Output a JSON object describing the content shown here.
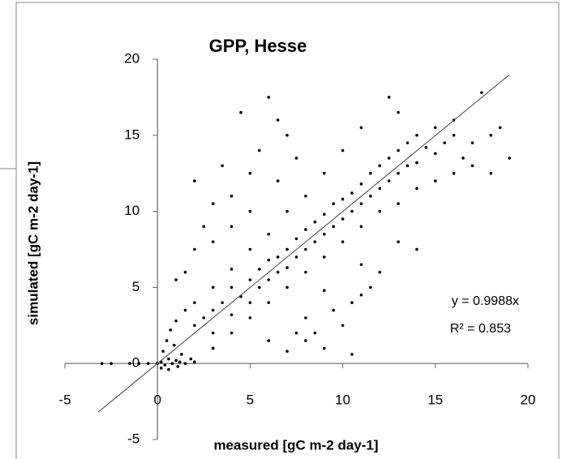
{
  "chart_data": {
    "type": "scatter",
    "title": "GPP, Hesse",
    "x_label": "measured [gC m-2 day-1]",
    "y_label": "simulated [gC m-2 day-1]",
    "xlim": [
      -5,
      20
    ],
    "ylim": [
      -5,
      20
    ],
    "xticks": [
      -5,
      0,
      5,
      10,
      15,
      20
    ],
    "yticks": [
      -5,
      0,
      5,
      10,
      15,
      20
    ],
    "color": "#000000",
    "annotations": [
      "y = 0.9988x",
      "R² = 0.853"
    ],
    "fit": {
      "slope": 0.9988,
      "x_range": [
        -3.2,
        19
      ]
    },
    "x": [
      -3,
      -2.5,
      -1.5,
      -1,
      -0.5,
      0,
      0.2,
      0.4,
      0.6,
      0.8,
      1,
      1.2,
      1.5,
      0.3,
      0.5,
      0.7,
      1,
      0.9,
      1.3,
      1.8,
      2,
      0.2,
      0.6,
      1.1,
      2,
      2.5,
      3,
      3,
      3.5,
      4,
      4,
      4.5,
      5,
      5,
      5.5,
      5.5,
      6,
      6,
      6.5,
      6.5,
      7,
      7,
      7.5,
      7.5,
      8,
      8,
      8.5,
      8.5,
      9,
      9,
      9.5,
      9.5,
      10,
      10,
      10.5,
      10.5,
      11,
      11,
      11.5,
      11.5,
      12,
      12,
      12.5,
      12.5,
      13,
      13,
      13.5,
      13.5,
      14,
      14,
      14.5,
      15,
      15,
      15.5,
      16,
      16.5,
      17,
      17.5,
      18,
      18.5,
      19,
      16,
      13,
      12.5,
      11,
      10,
      9,
      8,
      7,
      6,
      5,
      4,
      3,
      2,
      1.5,
      3,
      4,
      5,
      6,
      7,
      8,
      9,
      10,
      11,
      12,
      13,
      14,
      15,
      16,
      17,
      18,
      2,
      2.5,
      3,
      3.5,
      4,
      4.5,
      5,
      5.5,
      6,
      6.5,
      7,
      7.5,
      3,
      4,
      5,
      1.5,
      2,
      1,
      6.5,
      8,
      8.5,
      9,
      9.5,
      10,
      10.5,
      11,
      11.5,
      7,
      7.5,
      6,
      9,
      12,
      13,
      14,
      11,
      8,
      10.5
    ],
    "y": [
      0,
      0,
      0,
      0,
      0,
      0,
      0.1,
      -0.1,
      0.3,
      0,
      0.2,
      0.1,
      0,
      0.8,
      1.5,
      2.2,
      2.8,
      1.2,
      0.6,
      0.3,
      0.1,
      -0.3,
      -0.4,
      -0.2,
      2.5,
      3,
      3.5,
      2,
      4,
      5,
      3.2,
      4.4,
      5.5,
      4,
      6.2,
      5,
      6.8,
      5.5,
      7,
      6,
      7.5,
      6.3,
      8.2,
      7,
      8.8,
      7.5,
      9.3,
      8,
      9.8,
      8.5,
      10.5,
      9,
      10.8,
      9.5,
      11.2,
      10,
      11.8,
      10.5,
      12.5,
      11,
      13,
      11.5,
      13.5,
      12,
      14,
      12.5,
      14.5,
      13,
      15,
      13.2,
      14.2,
      15.5,
      13.8,
      14.5,
      15,
      13.5,
      14.5,
      17.8,
      15,
      15.5,
      13.5,
      16,
      16.5,
      17.5,
      15.5,
      14,
      12.5,
      11,
      10,
      8.5,
      7.5,
      6.2,
      5,
      4,
      3.5,
      1,
      2,
      3,
      4,
      5,
      6,
      7,
      8,
      9,
      10,
      10.5,
      11.5,
      12,
      12.5,
      13,
      12.5,
      12,
      9,
      10.5,
      13,
      11,
      16.5,
      12.5,
      14,
      17.5,
      12,
      15,
      13.5,
      8,
      9,
      10,
      6,
      7.5,
      5.5,
      16,
      3,
      2,
      1,
      3.5,
      2.5,
      4,
      4.5,
      5,
      0.8,
      2,
      1.5,
      4.8,
      6,
      8,
      7.5,
      6.5,
      1.5,
      0.6
    ]
  }
}
